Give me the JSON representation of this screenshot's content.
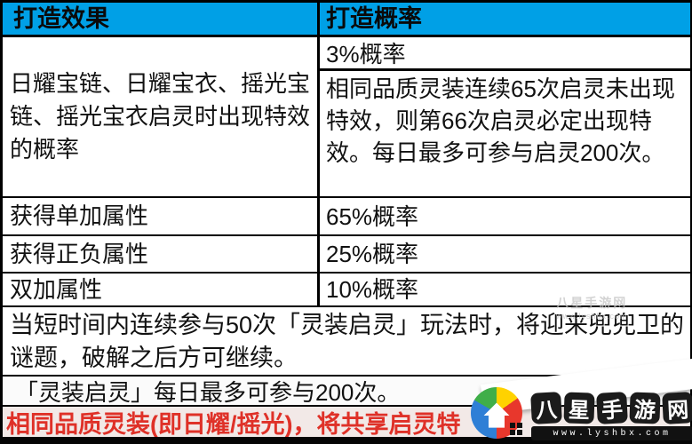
{
  "colors": {
    "header_bg": "#00a0e6",
    "border": "#000000",
    "banner_bg": "#f2e9e7",
    "banner_text": "#df3128",
    "logo_blue": "#2e7fd6",
    "logo_green": "#3fae49",
    "logo_yellow": "#ffd200",
    "logo_red": "#e8372c"
  },
  "table": {
    "header": {
      "effect": "打造效果",
      "probability": "打造概率"
    },
    "merged_row": {
      "effect": "日耀宝链、日耀宝衣、摇光宝链、摇光宝衣启灵时出现特效的概率",
      "prob_top": "3%概率",
      "prob_bottom": "相同品质灵装连续65次启灵未出现特效，则第66次启灵必定出现特效。每日最多可参与启灵200次。"
    },
    "rows": [
      {
        "effect": "获得单加属性",
        "probability": "65%概率"
      },
      {
        "effect": "获得正负属性",
        "probability": "25%概率"
      },
      {
        "effect": "双加属性",
        "probability": "10%概率"
      }
    ],
    "notes": [
      "当短时间内连续参与50次「灵装启灵」玩法时，将迎来兜兜卫的谜题，破解之后方可继续。",
      "「灵装启灵」每日最多可参与200次。"
    ]
  },
  "banner": {
    "text": "相同品质灵装(即日耀/摇光)，将共享启灵特"
  },
  "watermark": {
    "site_name": "八星手游网",
    "site_chars": [
      "八",
      "星",
      "手",
      "游",
      "网"
    ],
    "url": "www.lyshbx.com",
    "faint_line1": "八星手游网",
    "faint_line2": "www.lyshbx.com"
  }
}
